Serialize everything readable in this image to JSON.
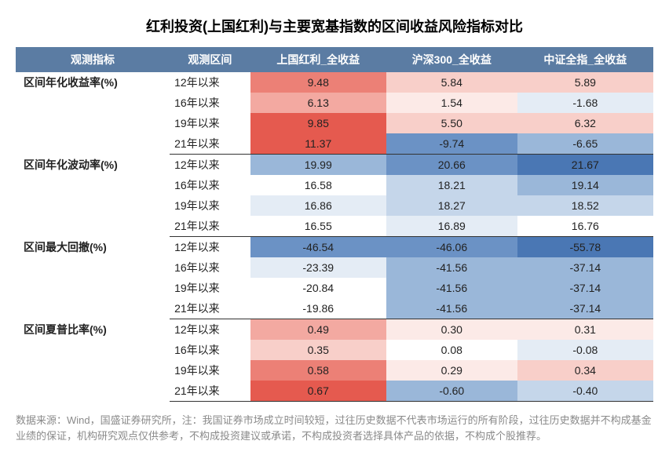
{
  "title": "红利投资(上国红利)与主要宽基指数的区间收益风险指标对比",
  "columns": [
    "观测指标",
    "观测区间",
    "上国红利_全收益",
    "沪深300_全收益",
    "中证全指_全收益"
  ],
  "colors": {
    "header_bg": "#5b7ca3",
    "header_fg": "#ffffff",
    "red5": "#e55a4f",
    "red4": "#ec8076",
    "red3": "#f3a9a1",
    "red2": "#f8cfc9",
    "red1": "#fceae7",
    "blue5": "#4a77b4",
    "blue4": "#6b92c5",
    "blue3": "#9ab7d9",
    "blue2": "#c5d6ea",
    "blue1": "#e4ecf5",
    "white": "#ffffff"
  },
  "groups": [
    {
      "metric": "区间年化收益率(%)",
      "rows": [
        {
          "period": "12年以来",
          "c1": {
            "v": "9.48",
            "bg": "red4"
          },
          "c2": {
            "v": "5.84",
            "bg": "red2"
          },
          "c3": {
            "v": "5.89",
            "bg": "red2"
          }
        },
        {
          "period": "16年以来",
          "c1": {
            "v": "6.13",
            "bg": "red3"
          },
          "c2": {
            "v": "1.54",
            "bg": "red1"
          },
          "c3": {
            "v": "-1.68",
            "bg": "blue1"
          }
        },
        {
          "period": "19年以来",
          "c1": {
            "v": "9.85",
            "bg": "red5"
          },
          "c2": {
            "v": "5.50",
            "bg": "red2"
          },
          "c3": {
            "v": "6.32",
            "bg": "red2"
          }
        },
        {
          "period": "21年以来",
          "c1": {
            "v": "11.37",
            "bg": "red5"
          },
          "c2": {
            "v": "-9.74",
            "bg": "blue4"
          },
          "c3": {
            "v": "-6.65",
            "bg": "blue3"
          }
        }
      ]
    },
    {
      "metric": "区间年化波动率(%)",
      "rows": [
        {
          "period": "12年以来",
          "c1": {
            "v": "19.99",
            "bg": "blue3"
          },
          "c2": {
            "v": "20.66",
            "bg": "blue4"
          },
          "c3": {
            "v": "21.67",
            "bg": "blue5"
          }
        },
        {
          "period": "16年以来",
          "c1": {
            "v": "16.58",
            "bg": "white"
          },
          "c2": {
            "v": "18.21",
            "bg": "blue2"
          },
          "c3": {
            "v": "19.14",
            "bg": "blue3"
          }
        },
        {
          "period": "19年以来",
          "c1": {
            "v": "16.86",
            "bg": "blue1"
          },
          "c2": {
            "v": "18.27",
            "bg": "blue2"
          },
          "c3": {
            "v": "18.52",
            "bg": "blue2"
          }
        },
        {
          "period": "21年以来",
          "c1": {
            "v": "16.55",
            "bg": "white"
          },
          "c2": {
            "v": "16.89",
            "bg": "blue1"
          },
          "c3": {
            "v": "16.76",
            "bg": "white"
          }
        }
      ]
    },
    {
      "metric": "区间最大回撤(%)",
      "rows": [
        {
          "period": "12年以来",
          "c1": {
            "v": "-46.54",
            "bg": "blue4"
          },
          "c2": {
            "v": "-46.06",
            "bg": "blue4"
          },
          "c3": {
            "v": "-55.78",
            "bg": "blue5"
          }
        },
        {
          "period": "16年以来",
          "c1": {
            "v": "-23.39",
            "bg": "blue1"
          },
          "c2": {
            "v": "-41.56",
            "bg": "blue3"
          },
          "c3": {
            "v": "-37.14",
            "bg": "blue3"
          }
        },
        {
          "period": "19年以来",
          "c1": {
            "v": "-20.84",
            "bg": "white"
          },
          "c2": {
            "v": "-41.56",
            "bg": "blue3"
          },
          "c3": {
            "v": "-37.14",
            "bg": "blue3"
          }
        },
        {
          "period": "21年以来",
          "c1": {
            "v": "-19.86",
            "bg": "white"
          },
          "c2": {
            "v": "-41.56",
            "bg": "blue3"
          },
          "c3": {
            "v": "-37.14",
            "bg": "blue3"
          }
        }
      ]
    },
    {
      "metric": "区间夏普比率(%)",
      "rows": [
        {
          "period": "12年以来",
          "c1": {
            "v": "0.49",
            "bg": "red3"
          },
          "c2": {
            "v": "0.30",
            "bg": "red1"
          },
          "c3": {
            "v": "0.31",
            "bg": "red1"
          }
        },
        {
          "period": "16年以来",
          "c1": {
            "v": "0.35",
            "bg": "red2"
          },
          "c2": {
            "v": "0.08",
            "bg": "white"
          },
          "c3": {
            "v": "-0.08",
            "bg": "blue1"
          }
        },
        {
          "period": "19年以来",
          "c1": {
            "v": "0.58",
            "bg": "red4"
          },
          "c2": {
            "v": "0.29",
            "bg": "red1"
          },
          "c3": {
            "v": "0.34",
            "bg": "red2"
          }
        },
        {
          "period": "21年以来",
          "c1": {
            "v": "0.67",
            "bg": "red5"
          },
          "c2": {
            "v": "-0.60",
            "bg": "blue3"
          },
          "c3": {
            "v": "-0.40",
            "bg": "blue2"
          }
        }
      ]
    }
  ],
  "footnote": "数据来源：Wind，国盛证券研究所，注：我国证券市场成立时间较短，过往历史数据不代表市场运行的所有阶段，过往历史数据并不构成基金业绩的保证，机构研究观点仅供参考，不构成投资建议或承诺，不构成投资者选择具体产品的依据，不构成个股推荐。"
}
